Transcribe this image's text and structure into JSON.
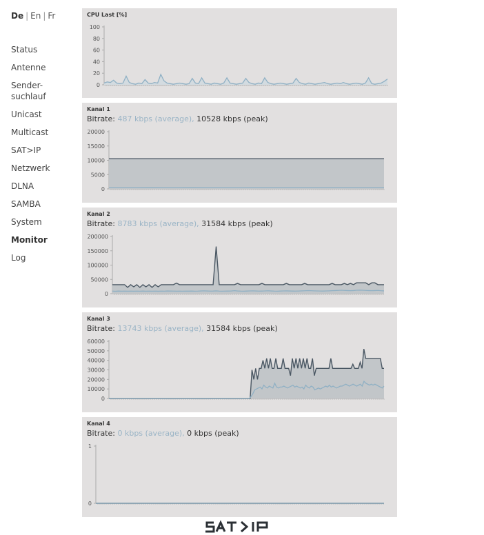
{
  "languages": [
    {
      "label": "De",
      "active": true
    },
    {
      "label": "En",
      "active": false
    },
    {
      "label": "Fr",
      "active": false
    }
  ],
  "sidebar": {
    "items": [
      {
        "label": "Status"
      },
      {
        "label": "Antenne"
      },
      {
        "label": "Sender-\nsuchlauf"
      },
      {
        "label": "Unicast"
      },
      {
        "label": "Multicast"
      },
      {
        "label": "SAT>IP"
      },
      {
        "label": "Netzwerk"
      },
      {
        "label": "DLNA"
      },
      {
        "label": "SAMBA"
      },
      {
        "label": "System"
      },
      {
        "label": "Monitor",
        "active": true
      },
      {
        "label": "Log"
      }
    ]
  },
  "cpu": {
    "title": "CPU Last [%]"
  },
  "kanal": [
    {
      "title": "Kanal 1",
      "bitrate_label": "Bitrate:",
      "average": "487 kbps (average),",
      "peak": "10528 kbps (peak)"
    },
    {
      "title": "Kanal 2",
      "bitrate_label": "Bitrate:",
      "average": "8783 kbps (average),",
      "peak": "31584 kbps (peak)"
    },
    {
      "title": "Kanal 3",
      "bitrate_label": "Bitrate:",
      "average": "13743 kbps (average),",
      "peak": "31584 kbps (peak)"
    },
    {
      "title": "Kanal 4",
      "bitrate_label": "Bitrate:",
      "average": "0 kbps (average),",
      "peak": "0 kbps (peak)"
    }
  ],
  "logo": {
    "text": "SAT>IP"
  },
  "colors": {
    "panel_bg": "#e2e0e0",
    "peak_line": "#4a5763",
    "peak_fill": "#c2c6c9",
    "avg_line": "#8fb0c4",
    "axis": "#aaaaaa"
  },
  "chart_data": [
    {
      "type": "area",
      "title": "CPU Last [%]",
      "ylim": [
        0,
        100
      ],
      "y_ticks": [
        "100",
        "80",
        "60",
        "40",
        "20",
        "0"
      ],
      "series": [
        {
          "values": [
            3,
            5,
            4,
            8,
            3,
            2,
            3,
            15,
            4,
            2,
            1,
            3,
            2,
            9,
            3,
            2,
            4,
            3,
            18,
            7,
            3,
            2,
            1,
            2,
            3,
            2,
            1,
            2,
            11,
            3,
            2,
            12,
            3,
            2,
            1,
            3,
            2,
            1,
            3,
            12,
            3,
            2,
            1,
            2,
            3,
            11,
            4,
            2,
            1,
            3,
            2,
            12,
            4,
            2,
            1,
            2,
            3,
            2,
            1,
            2,
            3,
            11,
            4,
            2,
            1,
            3,
            2,
            1,
            2,
            3,
            4,
            2,
            1,
            2,
            3,
            2,
            4,
            2,
            1,
            2,
            3,
            2,
            1,
            3,
            12,
            2,
            1,
            2,
            3,
            6,
            10
          ]
        }
      ]
    },
    {
      "type": "area",
      "title": "Kanal 1",
      "ylim": [
        0,
        20000
      ],
      "y_ticks": [
        "20000",
        "15000",
        "10000",
        "5000",
        "0"
      ],
      "series": [
        {
          "name": "peak",
          "values": [
            10528,
            10528,
            10528,
            10528,
            10528,
            10528,
            10528,
            10528,
            10528,
            10528,
            10528,
            10528,
            10528,
            10528,
            10528,
            10528,
            10528,
            10528,
            10528,
            10528,
            10528
          ]
        },
        {
          "name": "average",
          "values": [
            487,
            490,
            480,
            495,
            487,
            485,
            492,
            480,
            487,
            490,
            485,
            487,
            490,
            480,
            487,
            489,
            485,
            487,
            490,
            487,
            487
          ]
        }
      ]
    },
    {
      "type": "area",
      "title": "Kanal 2",
      "ylim": [
        0,
        200000
      ],
      "y_ticks": [
        "200000",
        "150000",
        "100000",
        "50000",
        "0"
      ],
      "series": [
        {
          "name": "peak",
          "values": [
            31584,
            31584,
            31584,
            31584,
            31584,
            22000,
            31584,
            24000,
            31584,
            22000,
            31584,
            24000,
            31584,
            22000,
            31584,
            24000,
            31584,
            31584,
            31584,
            31584,
            31584,
            37000,
            31584,
            31584,
            31584,
            31584,
            31584,
            31584,
            31584,
            31584,
            31584,
            31584,
            31584,
            31584,
            165000,
            31584,
            31584,
            31584,
            31584,
            31584,
            31584,
            36000,
            31584,
            31584,
            31584,
            31584,
            31584,
            31584,
            31584,
            36000,
            31584,
            31584,
            31584,
            31584,
            31584,
            31584,
            31584,
            36000,
            31584,
            31584,
            31584,
            31584,
            31584,
            36000,
            31584,
            31584,
            31584,
            31584,
            31584,
            31584,
            31584,
            31584,
            36000,
            31584,
            31584,
            31584,
            36000,
            31584,
            36000,
            31584,
            38000,
            38000,
            38000,
            38000,
            31584,
            38000,
            38000,
            31584,
            31584,
            31584
          ]
        },
        {
          "name": "average",
          "values": [
            9000,
            8500,
            9200,
            8800,
            9000,
            8700,
            9100,
            8600,
            9000,
            8800,
            9200,
            8700,
            9000,
            8800,
            9100,
            8600,
            9000,
            8800,
            9500,
            9200,
            9000,
            8800,
            9100,
            8700,
            9000,
            8900,
            9200,
            8800,
            9000,
            9500,
            10000,
            9500,
            9000,
            9200,
            9800,
            9000,
            8800,
            9000,
            9200,
            9500,
            10500,
            9500,
            9000,
            8800,
            9200,
            9600,
            10000,
            9500,
            9000,
            9200,
            9600,
            10200,
            9500,
            9000,
            8800,
            9200,
            9600,
            9800,
            9500,
            9200,
            9000,
            9400,
            9800,
            10200,
            10800,
            10500,
            10000,
            9600,
            9400,
            9200,
            9600,
            10000,
            10500,
            11000,
            11500,
            12000,
            11500,
            11000,
            10500,
            11000,
            12000,
            12500,
            12000,
            11500,
            11000,
            10500,
            11000,
            11500,
            10500,
            9800
          ]
        }
      ]
    },
    {
      "type": "area",
      "title": "Kanal 3",
      "ylim": [
        0,
        60000
      ],
      "y_ticks": [
        "60000",
        "50000",
        "40000",
        "30000",
        "20000",
        "10000",
        "0"
      ],
      "series": [
        {
          "name": "peak",
          "values": [
            0,
            0,
            0,
            0,
            0,
            0,
            0,
            0,
            0,
            0,
            0,
            0,
            0,
            0,
            0,
            0,
            0,
            0,
            0,
            0,
            0,
            0,
            0,
            0,
            0,
            0,
            0,
            0,
            0,
            0,
            0,
            0,
            0,
            0,
            0,
            0,
            0,
            0,
            0,
            0,
            0,
            0,
            0,
            0,
            0,
            0,
            0,
            0,
            0,
            0,
            0,
            0,
            0,
            0,
            0,
            0,
            0,
            0,
            0,
            0,
            0,
            0,
            0,
            0,
            0,
            0,
            0,
            0,
            0,
            0,
            0,
            0,
            0,
            0,
            0,
            0,
            0,
            0,
            30000,
            20000,
            31584,
            20000,
            31584,
            31584,
            40000,
            31584,
            42000,
            31584,
            42000,
            31584,
            31584,
            42000,
            31584,
            31584,
            31584,
            42000,
            31584,
            31584,
            31584,
            24000,
            42000,
            31584,
            42000,
            31584,
            42000,
            31584,
            42000,
            31584,
            42000,
            31584,
            31584,
            42000,
            24000,
            31584,
            31584,
            31584,
            31584,
            31584,
            31584,
            31584,
            31584,
            42000,
            31584,
            31584,
            31584,
            31584,
            31584,
            31584,
            31584,
            31584,
            31584,
            31584,
            31584,
            36000,
            31584,
            31584,
            31584,
            38000,
            31584,
            52000,
            42000,
            42000,
            42000,
            42000,
            42000,
            42000,
            42000,
            42000,
            42000,
            31584,
            31584
          ]
        },
        {
          "name": "average",
          "values": [
            0,
            0,
            0,
            0,
            0,
            0,
            0,
            0,
            0,
            0,
            0,
            0,
            0,
            0,
            0,
            0,
            0,
            0,
            0,
            0,
            0,
            0,
            0,
            0,
            0,
            0,
            0,
            0,
            0,
            0,
            0,
            0,
            0,
            0,
            0,
            0,
            0,
            0,
            0,
            0,
            0,
            0,
            0,
            0,
            0,
            0,
            0,
            0,
            0,
            0,
            0,
            0,
            0,
            0,
            0,
            0,
            0,
            0,
            0,
            0,
            0,
            0,
            0,
            0,
            0,
            0,
            0,
            0,
            0,
            0,
            0,
            0,
            0,
            0,
            0,
            0,
            0,
            0,
            2000,
            5000,
            9000,
            10000,
            11000,
            12000,
            10000,
            14000,
            12000,
            11000,
            13000,
            12000,
            11000,
            16000,
            12000,
            11000,
            12000,
            12000,
            13000,
            12000,
            11000,
            12000,
            13000,
            14000,
            12000,
            13000,
            12000,
            11000,
            12000,
            10000,
            14000,
            12000,
            11000,
            13000,
            12000,
            9000,
            10000,
            11000,
            10000,
            11000,
            12000,
            13000,
            12000,
            14000,
            12000,
            13000,
            12000,
            11000,
            12000,
            13000,
            13000,
            14000,
            15000,
            14000,
            13000,
            14000,
            15000,
            14000,
            13000,
            14000,
            15000,
            13000,
            18000,
            16000,
            15000,
            14000,
            15000,
            14000,
            15000,
            14000,
            13000,
            12000,
            11000,
            13000
          ]
        }
      ]
    },
    {
      "type": "area",
      "title": "Kanal 4",
      "ylim": [
        0,
        1
      ],
      "y_ticks": [
        "1",
        "0"
      ],
      "series": [
        {
          "name": "peak",
          "values": [
            0,
            0
          ]
        },
        {
          "name": "average",
          "values": [
            0,
            0
          ]
        }
      ]
    }
  ]
}
